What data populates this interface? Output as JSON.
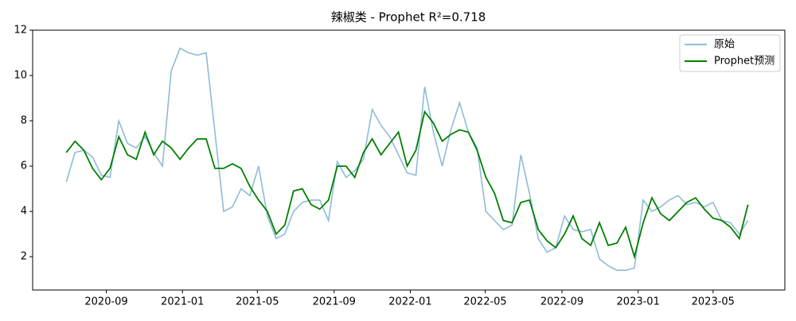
{
  "chart_data": {
    "type": "line",
    "title": "辣椒类 - Prophet R²=0.718",
    "x": [
      "2020-06-29",
      "2020-07-13",
      "2020-07-27",
      "2020-08-10",
      "2020-08-24",
      "2020-09-07",
      "2020-09-21",
      "2020-10-05",
      "2020-10-19",
      "2020-11-02",
      "2020-11-16",
      "2020-11-30",
      "2020-12-14",
      "2020-12-28",
      "2021-01-11",
      "2021-01-25",
      "2021-02-08",
      "2021-02-22",
      "2021-03-08",
      "2021-03-22",
      "2021-04-05",
      "2021-04-19",
      "2021-05-03",
      "2021-05-17",
      "2021-05-31",
      "2021-06-14",
      "2021-06-28",
      "2021-07-12",
      "2021-07-26",
      "2021-08-09",
      "2021-08-23",
      "2021-09-06",
      "2021-09-20",
      "2021-10-04",
      "2021-10-18",
      "2021-11-01",
      "2021-11-15",
      "2021-11-29",
      "2021-12-13",
      "2021-12-27",
      "2022-01-10",
      "2022-01-24",
      "2022-02-07",
      "2022-02-21",
      "2022-03-07",
      "2022-03-21",
      "2022-04-04",
      "2022-04-18",
      "2022-05-02",
      "2022-05-16",
      "2022-05-30",
      "2022-06-13",
      "2022-06-27",
      "2022-07-11",
      "2022-07-25",
      "2022-08-08",
      "2022-08-22",
      "2022-09-05",
      "2022-09-19",
      "2022-10-03",
      "2022-10-17",
      "2022-10-31",
      "2022-11-14",
      "2022-11-28",
      "2022-12-12",
      "2022-12-26",
      "2023-01-09",
      "2023-01-23",
      "2023-02-06",
      "2023-02-20",
      "2023-03-06",
      "2023-03-20",
      "2023-04-03",
      "2023-04-17",
      "2023-05-01",
      "2023-05-15",
      "2023-05-29",
      "2023-06-12",
      "2023-06-26"
    ],
    "series": [
      {
        "name": "原始",
        "color": "#8fbbd9",
        "values": [
          5.3,
          6.6,
          6.7,
          6.4,
          5.6,
          5.5,
          8.0,
          7.0,
          6.8,
          7.3,
          6.6,
          6.0,
          10.2,
          11.2,
          11.0,
          10.9,
          11.0,
          7.5,
          4.0,
          4.2,
          5.0,
          4.7,
          6.0,
          3.8,
          2.8,
          3.0,
          4.0,
          4.4,
          4.5,
          4.5,
          3.6,
          6.2,
          5.5,
          5.8,
          6.3,
          8.5,
          7.8,
          7.3,
          6.5,
          5.7,
          5.6,
          9.5,
          7.5,
          6.0,
          7.6,
          8.8,
          7.5,
          6.8,
          4.0,
          3.6,
          3.2,
          3.4,
          6.5,
          4.8,
          2.8,
          2.2,
          2.4,
          3.8,
          3.2,
          3.1,
          3.2,
          1.9,
          1.6,
          1.4,
          1.4,
          1.5,
          4.5,
          4.0,
          4.2,
          4.5,
          4.7,
          4.3,
          4.4,
          4.2,
          4.4,
          3.6,
          3.5,
          3.0,
          3.6
        ]
      },
      {
        "name": "Prophet预测",
        "color": "#008000",
        "values": [
          6.6,
          7.1,
          6.7,
          5.9,
          5.4,
          5.9,
          7.3,
          6.5,
          6.3,
          7.5,
          6.5,
          7.1,
          6.8,
          6.3,
          6.8,
          7.2,
          7.2,
          5.9,
          5.9,
          6.1,
          5.9,
          5.1,
          4.5,
          4.0,
          3.0,
          3.4,
          4.9,
          5.0,
          4.3,
          4.1,
          4.5,
          6.0,
          6.0,
          5.5,
          6.6,
          7.2,
          6.5,
          7.0,
          7.5,
          6.0,
          6.7,
          8.4,
          7.9,
          7.1,
          7.4,
          7.6,
          7.5,
          6.7,
          5.5,
          4.8,
          3.6,
          3.5,
          4.4,
          4.5,
          3.2,
          2.7,
          2.4,
          3.0,
          3.8,
          2.8,
          2.5,
          3.5,
          2.5,
          2.6,
          3.3,
          2.0,
          3.5,
          4.6,
          3.9,
          3.6,
          4.0,
          4.4,
          4.6,
          4.1,
          3.7,
          3.6,
          3.3,
          2.8,
          4.3
        ]
      }
    ],
    "xlim": [
      "2020-05-06",
      "2023-08-24"
    ],
    "xticks": [
      {
        "value": "2020-09-01",
        "label": "2020-09"
      },
      {
        "value": "2021-01-01",
        "label": "2021-01"
      },
      {
        "value": "2021-05-01",
        "label": "2021-05"
      },
      {
        "value": "2021-09-01",
        "label": "2021-09"
      },
      {
        "value": "2022-01-01",
        "label": "2022-01"
      },
      {
        "value": "2022-05-01",
        "label": "2022-05"
      },
      {
        "value": "2022-09-01",
        "label": "2022-09"
      },
      {
        "value": "2023-01-01",
        "label": "2023-01"
      },
      {
        "value": "2023-05-01",
        "label": "2023-05"
      }
    ],
    "ylim": [
      0.53,
      12
    ],
    "yticks": [
      2,
      4,
      6,
      8,
      10,
      12
    ],
    "legend": "upper right"
  }
}
